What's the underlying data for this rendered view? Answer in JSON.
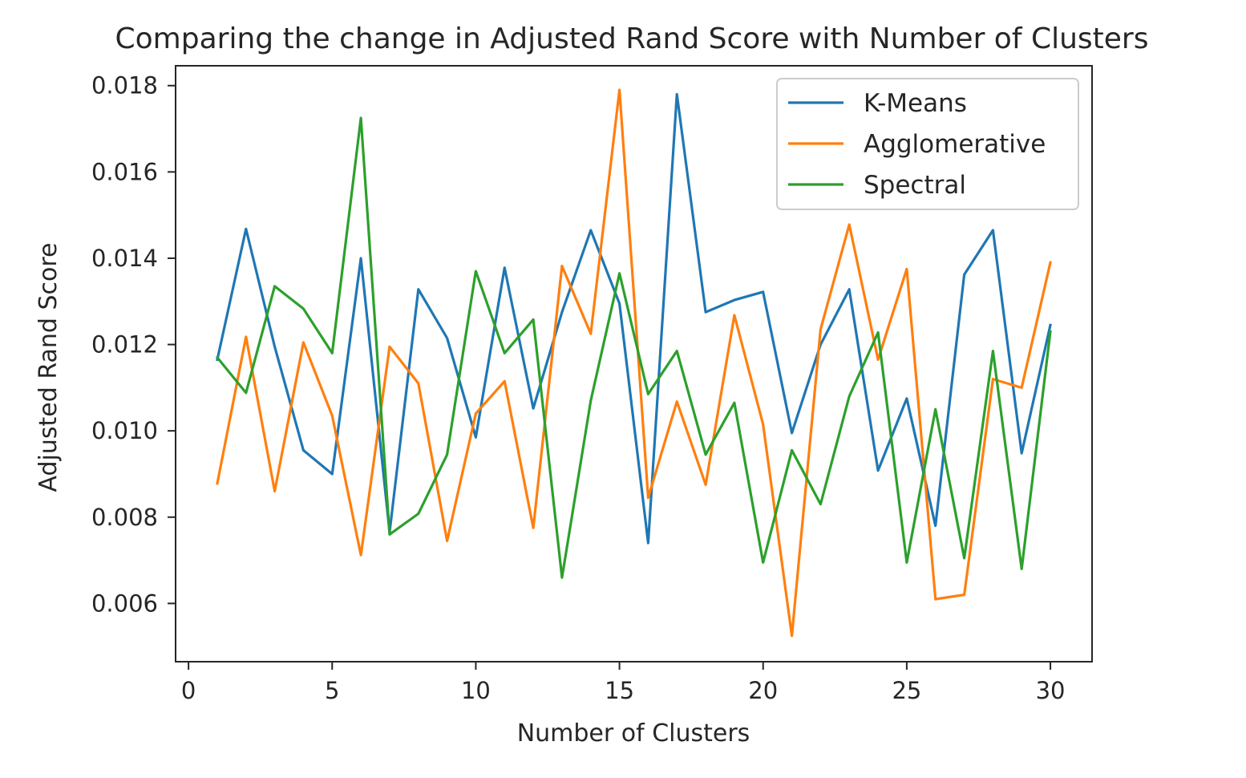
{
  "chart_data": {
    "type": "line",
    "title": "Comparing the change in Adjusted Rand Score with Number of Clusters",
    "xlabel": "Number of Clusters",
    "ylabel": "Adjusted Rand Score",
    "xlim": [
      -0.45,
      31.45
    ],
    "ylim": [
      0.00465,
      0.01846
    ],
    "xticks": [
      0,
      5,
      10,
      15,
      20,
      25,
      30
    ],
    "xtick_labels": [
      "0",
      "5",
      "10",
      "15",
      "20",
      "25",
      "30"
    ],
    "yticks": [
      0.006,
      0.008,
      0.01,
      0.012,
      0.014,
      0.016,
      0.018
    ],
    "ytick_labels": [
      "0.006",
      "0.008",
      "0.010",
      "0.012",
      "0.014",
      "0.016",
      "0.018"
    ],
    "grid": false,
    "legend_position": "top-right",
    "x": [
      1,
      2,
      3,
      4,
      5,
      6,
      7,
      8,
      9,
      10,
      11,
      12,
      13,
      14,
      15,
      16,
      17,
      18,
      19,
      20,
      21,
      22,
      23,
      24,
      25,
      26,
      27,
      28,
      29,
      30
    ],
    "series": [
      {
        "name": "K-Means",
        "color": "#1f77b4",
        "values": [
          0.01165,
          0.01468,
          0.01195,
          0.00955,
          0.009,
          0.014,
          0.00765,
          0.01328,
          0.01215,
          0.00985,
          0.01378,
          0.01052,
          0.01275,
          0.01465,
          0.01295,
          0.0074,
          0.0178,
          0.01275,
          0.01303,
          0.01322,
          0.00995,
          0.012,
          0.01328,
          0.00908,
          0.01075,
          0.0078,
          0.01362,
          0.01465,
          0.00948,
          0.01245
        ]
      },
      {
        "name": "Agglomerative",
        "color": "#ff7f0e",
        "values": [
          0.00878,
          0.01218,
          0.0086,
          0.01205,
          0.01035,
          0.00712,
          0.01195,
          0.0111,
          0.00745,
          0.0104,
          0.01115,
          0.00775,
          0.01382,
          0.01225,
          0.0179,
          0.00845,
          0.01068,
          0.00875,
          0.01268,
          0.01015,
          0.00525,
          0.01235,
          0.01478,
          0.01165,
          0.01375,
          0.0061,
          0.0062,
          0.0112,
          0.011,
          0.0139
        ]
      },
      {
        "name": "Spectral",
        "color": "#2ca02c",
        "values": [
          0.0117,
          0.01088,
          0.01335,
          0.01283,
          0.0118,
          0.01725,
          0.0076,
          0.00808,
          0.00945,
          0.0137,
          0.0118,
          0.01258,
          0.0066,
          0.0107,
          0.01365,
          0.01085,
          0.01185,
          0.00945,
          0.01065,
          0.00695,
          0.00955,
          0.0083,
          0.0108,
          0.01228,
          0.00695,
          0.0105,
          0.00705,
          0.01185,
          0.0068,
          0.0123
        ]
      }
    ]
  }
}
